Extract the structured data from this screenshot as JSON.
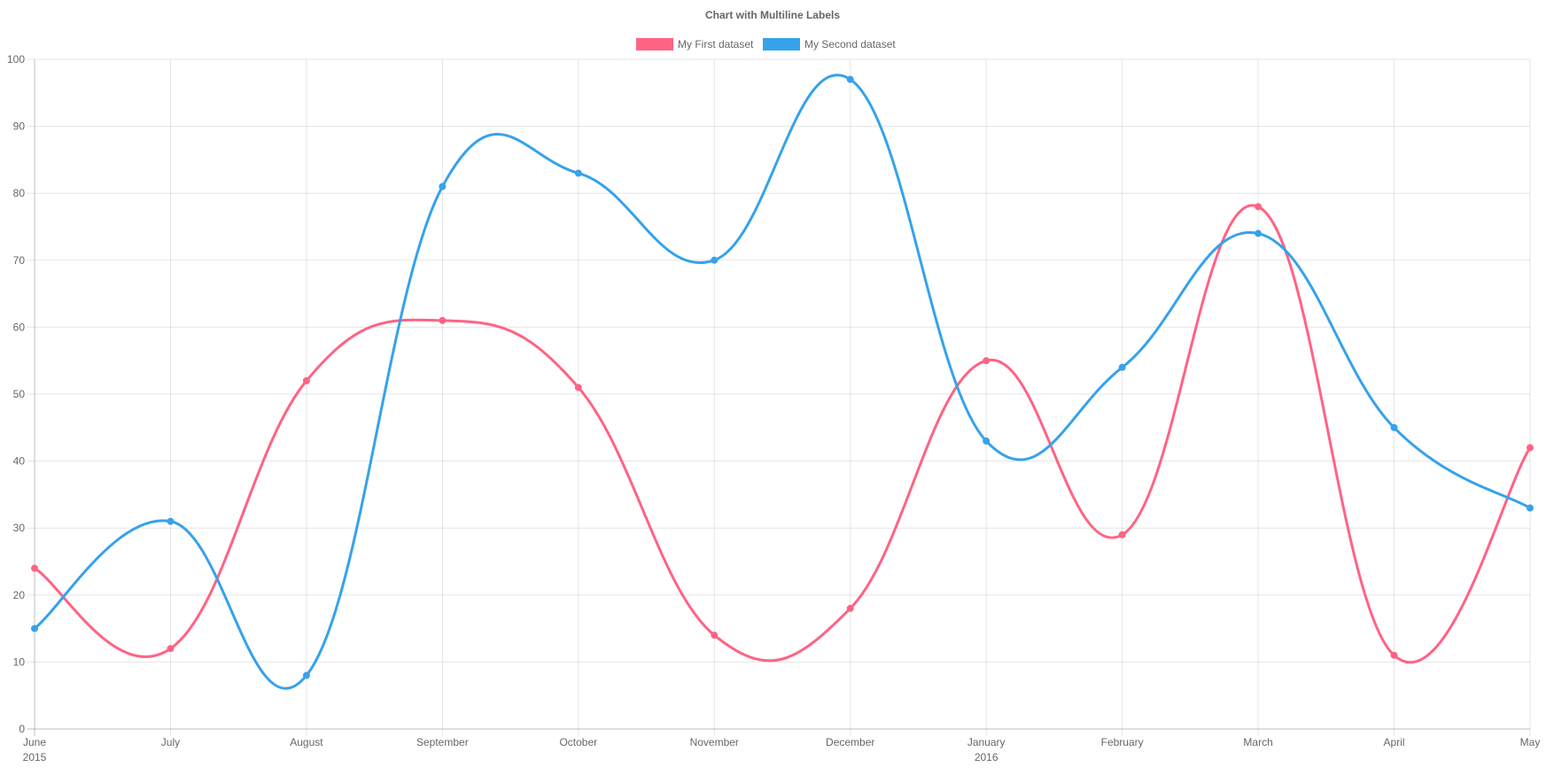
{
  "chart_data": {
    "type": "line",
    "title": "Chart with Multiline Labels",
    "categories": [
      [
        "June",
        "2015"
      ],
      [
        "July"
      ],
      [
        "August"
      ],
      [
        "September"
      ],
      [
        "October"
      ],
      [
        "November"
      ],
      [
        "December"
      ],
      [
        "January",
        "2016"
      ],
      [
        "February"
      ],
      [
        "March"
      ],
      [
        "April"
      ],
      [
        "May"
      ]
    ],
    "series": [
      {
        "name": "My First dataset",
        "color": "#ff6384",
        "values": [
          24,
          12,
          52,
          61,
          51,
          14,
          18,
          55,
          29,
          78,
          11,
          42
        ]
      },
      {
        "name": "My Second dataset",
        "color": "#36a2eb",
        "values": [
          15,
          31,
          8,
          81,
          83,
          70,
          97,
          43,
          54,
          74,
          45,
          33
        ]
      }
    ],
    "ylim": [
      0,
      100
    ],
    "yticks": [
      0,
      10,
      20,
      30,
      40,
      50,
      60,
      70,
      80,
      90,
      100
    ],
    "grid": true,
    "legend_position": "top",
    "curve": "smooth"
  }
}
